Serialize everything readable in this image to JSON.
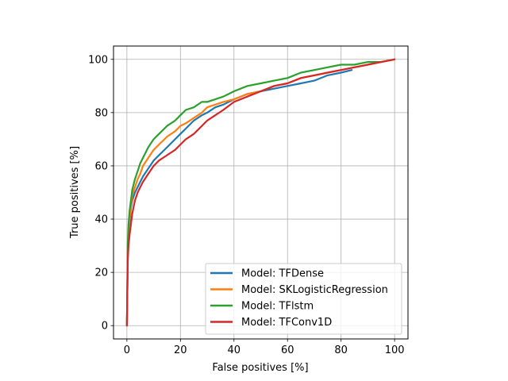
{
  "chart_data": {
    "type": "line",
    "title": "",
    "xlabel": "False positives [%]",
    "ylabel": "True positives [%]",
    "xlim": [
      -5,
      105
    ],
    "ylim": [
      -5,
      105
    ],
    "xticks": [
      0,
      20,
      40,
      60,
      80,
      100
    ],
    "yticks": [
      0,
      20,
      40,
      60,
      80,
      100
    ],
    "grid": true,
    "legend_position": "lower-right",
    "series": [
      {
        "name": "Model: TFDense",
        "color": "#1f77b4",
        "x": [
          0,
          0.3,
          0.6,
          1,
          1.5,
          2,
          3,
          4,
          5,
          6,
          8,
          10,
          12,
          15,
          18,
          20,
          22,
          25,
          28,
          30,
          33,
          36,
          40,
          45,
          50,
          55,
          60,
          65,
          70,
          75,
          80,
          84
        ],
        "y": [
          0,
          25,
          33,
          39,
          44,
          47,
          50,
          52,
          54,
          56,
          59,
          62,
          64,
          67,
          70,
          72,
          74,
          77,
          79,
          80,
          82,
          83,
          85,
          87,
          88,
          89,
          90,
          91,
          92,
          94,
          95,
          96
        ]
      },
      {
        "name": "Model: SKLogisticRegression",
        "color": "#ff7f0e",
        "x": [
          0,
          0.3,
          0.6,
          1,
          1.5,
          2,
          3,
          4,
          5,
          6,
          8,
          10,
          12,
          15,
          18,
          20,
          22,
          25,
          28,
          30,
          33,
          36,
          40,
          45,
          50,
          55,
          60,
          65,
          70,
          75,
          80,
          85,
          90,
          95,
          100
        ],
        "y": [
          0,
          28,
          35,
          40,
          45,
          49,
          52,
          55,
          57,
          60,
          63,
          66,
          68,
          71,
          73,
          75,
          76,
          78,
          80,
          82,
          83,
          84,
          85,
          87,
          88,
          90,
          91,
          93,
          94,
          95,
          96,
          97,
          98,
          99,
          100
        ]
      },
      {
        "name": "Model: TFlstm",
        "color": "#2ca02c",
        "x": [
          0,
          0.3,
          0.6,
          1,
          1.5,
          2,
          3,
          4,
          5,
          6,
          8,
          10,
          12,
          15,
          18,
          20,
          22,
          25,
          28,
          30,
          33,
          36,
          40,
          45,
          50,
          55,
          60,
          65,
          70,
          75,
          80,
          85,
          90,
          95,
          100
        ],
        "y": [
          0,
          30,
          38,
          43,
          47,
          51,
          55,
          58,
          61,
          63,
          67,
          70,
          72,
          75,
          77,
          79,
          81,
          82,
          84,
          84,
          85,
          86,
          88,
          90,
          91,
          92,
          93,
          95,
          96,
          97,
          98,
          98,
          99,
          99,
          100
        ]
      },
      {
        "name": "Model: TFConv1D",
        "color": "#d62728",
        "x": [
          0,
          0.3,
          0.6,
          1,
          1.5,
          2,
          3,
          4,
          5,
          6,
          8,
          10,
          12,
          15,
          18,
          20,
          22,
          25,
          28,
          30,
          33,
          36,
          40,
          45,
          50,
          55,
          60,
          65,
          70,
          75,
          80,
          85,
          90,
          95,
          100
        ],
        "y": [
          0,
          24,
          30,
          34,
          38,
          42,
          47,
          50,
          52,
          54,
          57,
          60,
          62,
          64,
          66,
          68,
          70,
          72,
          75,
          77,
          79,
          81,
          84,
          86,
          88,
          90,
          91,
          93,
          94,
          95,
          96,
          97,
          98,
          99,
          100
        ]
      }
    ]
  }
}
